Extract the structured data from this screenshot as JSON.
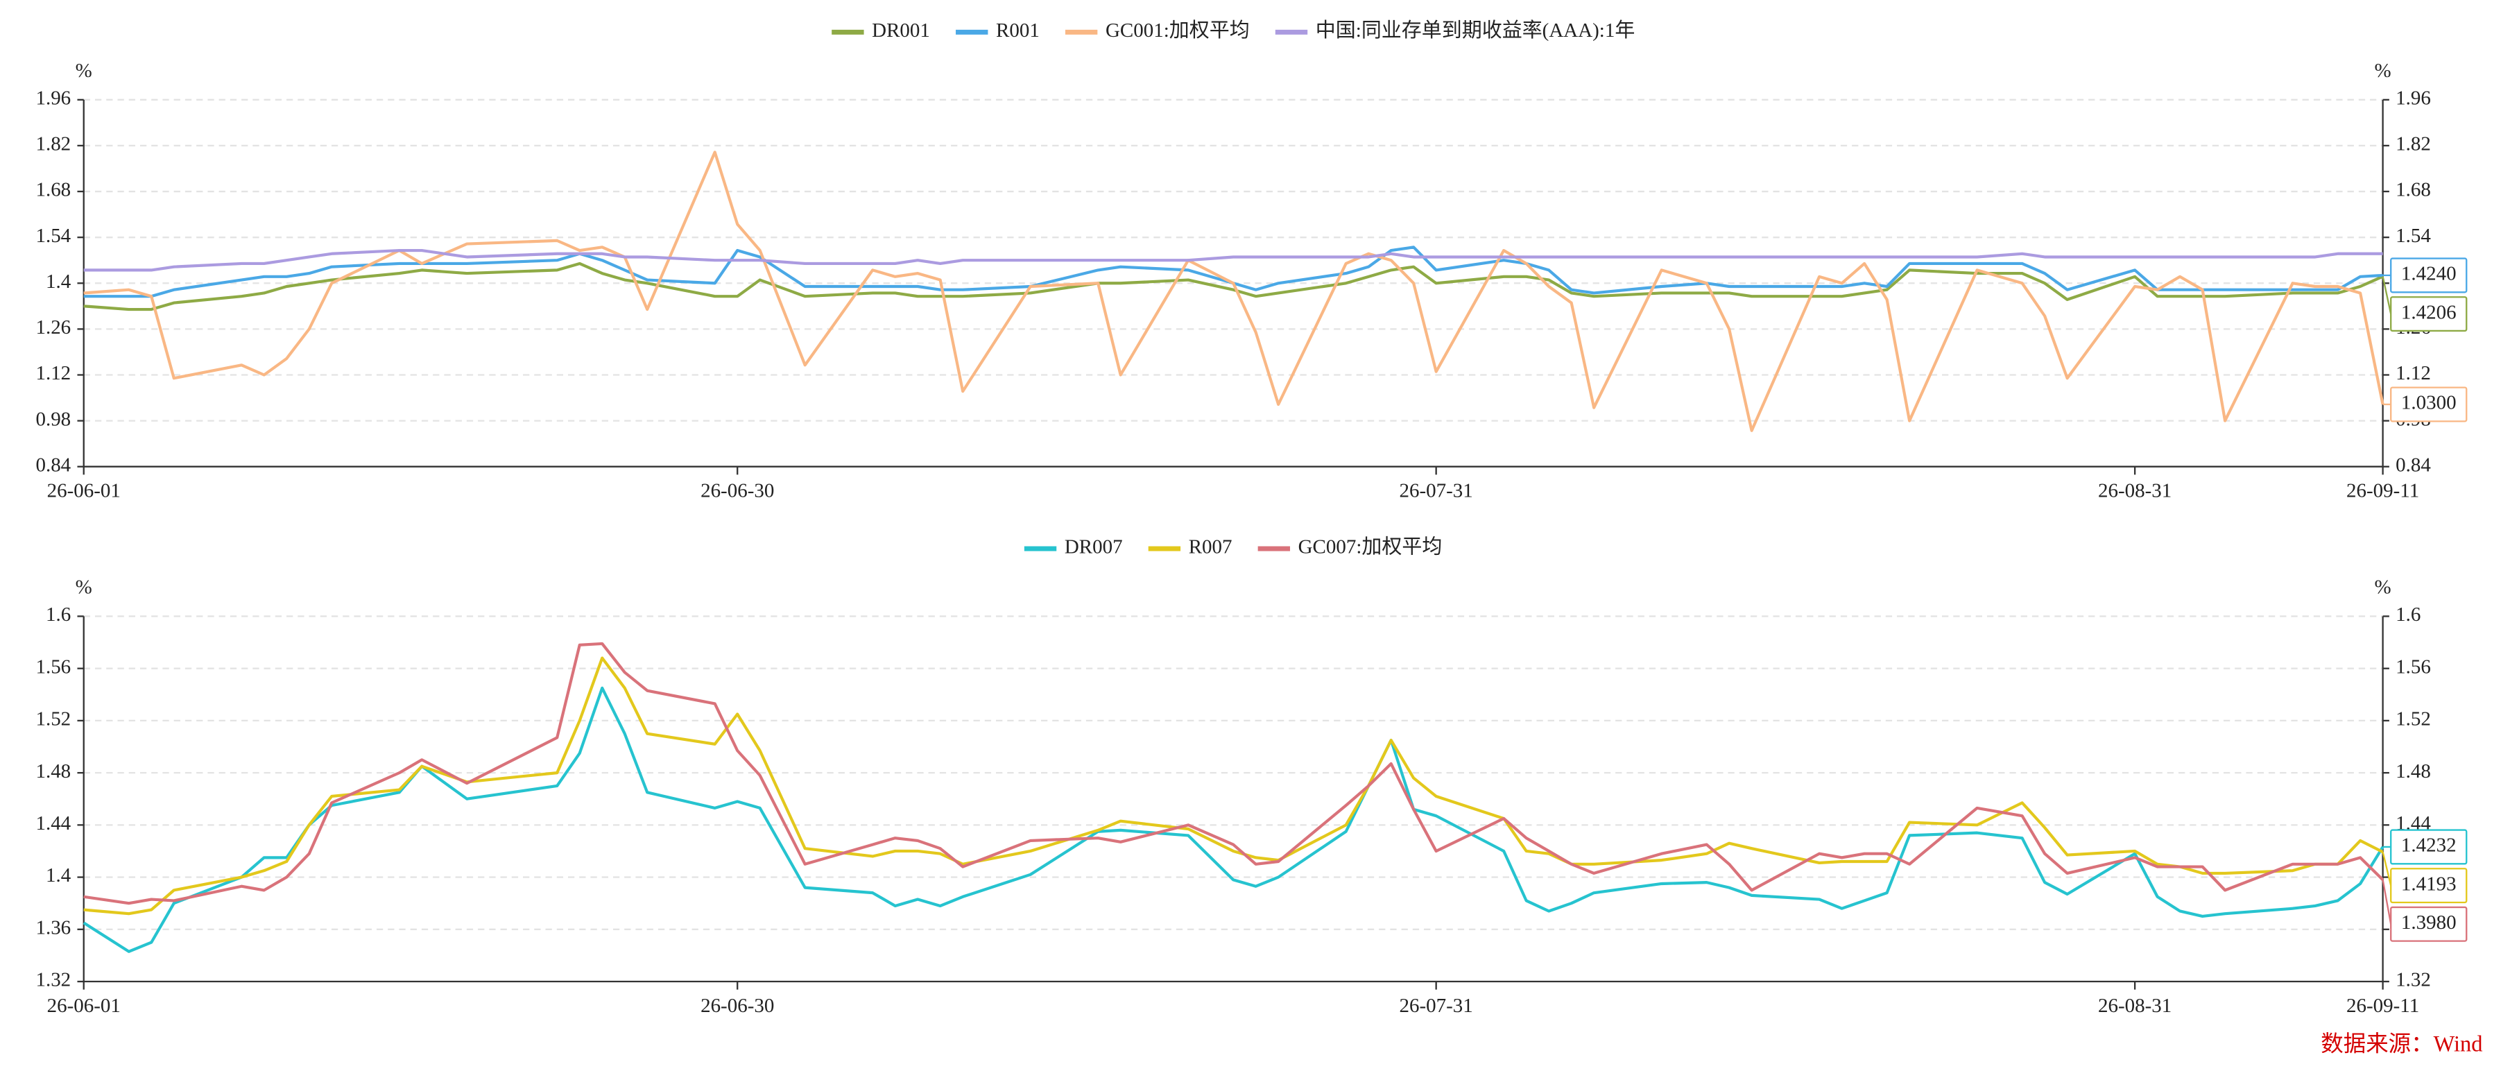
{
  "chart_data": [
    {
      "type": "line",
      "x": [
        "26-06-01",
        "26-06-03",
        "26-06-04",
        "26-06-05",
        "26-06-08",
        "26-06-09",
        "26-06-10",
        "26-06-11",
        "26-06-12",
        "26-06-15",
        "26-06-16",
        "26-06-18",
        "26-06-22",
        "26-06-23",
        "26-06-24",
        "26-06-25",
        "26-06-26",
        "26-06-29",
        "26-06-30",
        "26-07-01",
        "26-07-03",
        "26-07-06",
        "26-07-07",
        "26-07-08",
        "26-07-09",
        "26-07-10",
        "26-07-13",
        "26-07-16",
        "26-07-17",
        "26-07-20",
        "26-07-22",
        "26-07-23",
        "26-07-24",
        "26-07-27",
        "26-07-28",
        "26-07-29",
        "26-07-30",
        "26-07-31",
        "26-08-03",
        "26-08-04",
        "26-08-05",
        "26-08-06",
        "26-08-07",
        "26-08-10",
        "26-08-12",
        "26-08-13",
        "26-08-14",
        "26-08-17",
        "26-08-18",
        "26-08-19",
        "26-08-20",
        "26-08-21",
        "26-08-24",
        "26-08-26",
        "26-08-27",
        "26-08-28",
        "26-08-31",
        "26-09-01",
        "26-09-02",
        "26-09-03",
        "26-09-04",
        "26-09-07",
        "26-09-08",
        "26-09-09",
        "26-09-10",
        "26-09-11"
      ],
      "xlim": [
        "26-06-01",
        "26-09-11"
      ],
      "xticks": [
        "26-06-01",
        "26-06-30",
        "26-07-31",
        "26-08-31",
        "26-09-11"
      ],
      "ylabel": "%",
      "y2label": "%",
      "ylim": [
        0.84,
        1.96
      ],
      "yticks": [
        0.84,
        0.98,
        1.12,
        1.26,
        1.4,
        1.54,
        1.68,
        1.82,
        1.96
      ],
      "y2lim": [
        0.84,
        1.96
      ],
      "y2ticks": [
        0.84,
        0.98,
        1.12,
        1.26,
        1.4,
        1.54,
        1.68,
        1.82,
        1.96
      ],
      "grid": true,
      "legend": "top",
      "series": [
        {
          "name": "DR001",
          "color": "#8eaa45",
          "last_label": "1.4206",
          "values": [
            1.33,
            1.32,
            1.32,
            1.34,
            1.36,
            1.37,
            1.39,
            1.4,
            1.41,
            1.43,
            1.44,
            1.43,
            1.44,
            1.46,
            1.43,
            1.41,
            1.4,
            1.36,
            1.36,
            1.41,
            1.36,
            1.37,
            1.37,
            1.36,
            1.36,
            1.36,
            1.37,
            1.4,
            1.4,
            1.41,
            1.38,
            1.36,
            1.37,
            1.4,
            1.42,
            1.44,
            1.45,
            1.4,
            1.42,
            1.42,
            1.41,
            1.37,
            1.36,
            1.37,
            1.37,
            1.37,
            1.36,
            1.36,
            1.36,
            1.37,
            1.38,
            1.44,
            1.43,
            1.43,
            1.4,
            1.35,
            1.42,
            1.36,
            1.36,
            1.36,
            1.36,
            1.37,
            1.37,
            1.37,
            1.39,
            1.4206
          ]
        },
        {
          "name": "R001",
          "color": "#4aa8e6",
          "last_label": "1.4240",
          "values": [
            1.36,
            1.36,
            1.36,
            1.38,
            1.41,
            1.42,
            1.42,
            1.43,
            1.45,
            1.46,
            1.46,
            1.46,
            1.47,
            1.49,
            1.47,
            1.44,
            1.41,
            1.4,
            1.5,
            1.48,
            1.39,
            1.39,
            1.39,
            1.39,
            1.38,
            1.38,
            1.39,
            1.44,
            1.45,
            1.44,
            1.4,
            1.38,
            1.4,
            1.43,
            1.45,
            1.5,
            1.51,
            1.44,
            1.47,
            1.46,
            1.44,
            1.38,
            1.37,
            1.39,
            1.4,
            1.39,
            1.39,
            1.39,
            1.39,
            1.4,
            1.39,
            1.46,
            1.46,
            1.46,
            1.43,
            1.38,
            1.44,
            1.38,
            1.38,
            1.38,
            1.38,
            1.38,
            1.38,
            1.38,
            1.42,
            1.424
          ]
        },
        {
          "name": "GC001:加权平均",
          "color": "#f9b784",
          "last_label": "1.0300",
          "values": [
            1.37,
            1.38,
            1.36,
            1.11,
            1.15,
            1.12,
            1.17,
            1.26,
            1.4,
            1.5,
            1.46,
            1.52,
            1.53,
            1.5,
            1.51,
            1.48,
            1.32,
            1.8,
            1.58,
            1.5,
            1.15,
            1.44,
            1.42,
            1.43,
            1.41,
            1.07,
            1.39,
            1.4,
            1.12,
            1.47,
            1.4,
            1.25,
            1.03,
            1.46,
            1.49,
            1.47,
            1.4,
            1.13,
            1.5,
            1.46,
            1.39,
            1.34,
            1.02,
            1.44,
            1.4,
            1.26,
            0.95,
            1.42,
            1.4,
            1.46,
            1.35,
            0.98,
            1.44,
            1.4,
            1.3,
            1.11,
            1.39,
            1.38,
            1.42,
            1.38,
            0.98,
            1.4,
            1.39,
            1.39,
            1.37,
            1.03
          ]
        },
        {
          "name": "中国:同业存单到期收益率(AAA):1年",
          "color": "#ab9be0",
          "values": [
            1.44,
            1.44,
            1.44,
            1.45,
            1.46,
            1.46,
            1.47,
            1.48,
            1.49,
            1.5,
            1.5,
            1.48,
            1.49,
            1.49,
            1.49,
            1.48,
            1.48,
            1.47,
            1.47,
            1.47,
            1.46,
            1.46,
            1.46,
            1.47,
            1.46,
            1.47,
            1.47,
            1.47,
            1.47,
            1.47,
            1.48,
            1.48,
            1.48,
            1.48,
            1.48,
            1.49,
            1.48,
            1.48,
            1.48,
            1.48,
            1.48,
            1.48,
            1.48,
            1.48,
            1.48,
            1.48,
            1.48,
            1.48,
            1.48,
            1.48,
            1.48,
            1.48,
            1.48,
            1.49,
            1.48,
            1.48,
            1.48,
            1.48,
            1.48,
            1.48,
            1.48,
            1.48,
            1.48,
            1.49,
            1.49,
            1.49
          ]
        }
      ]
    },
    {
      "type": "line",
      "x": [
        "26-06-01",
        "26-06-03",
        "26-06-04",
        "26-06-05",
        "26-06-08",
        "26-06-09",
        "26-06-10",
        "26-06-11",
        "26-06-12",
        "26-06-15",
        "26-06-16",
        "26-06-18",
        "26-06-22",
        "26-06-23",
        "26-06-24",
        "26-06-25",
        "26-06-26",
        "26-06-29",
        "26-06-30",
        "26-07-01",
        "26-07-03",
        "26-07-06",
        "26-07-07",
        "26-07-08",
        "26-07-09",
        "26-07-10",
        "26-07-13",
        "26-07-16",
        "26-07-17",
        "26-07-20",
        "26-07-22",
        "26-07-23",
        "26-07-24",
        "26-07-27",
        "26-07-28",
        "26-07-29",
        "26-07-30",
        "26-07-31",
        "26-08-03",
        "26-08-04",
        "26-08-05",
        "26-08-06",
        "26-08-07",
        "26-08-10",
        "26-08-12",
        "26-08-13",
        "26-08-14",
        "26-08-17",
        "26-08-18",
        "26-08-19",
        "26-08-20",
        "26-08-21",
        "26-08-24",
        "26-08-26",
        "26-08-27",
        "26-08-28",
        "26-08-31",
        "26-09-01",
        "26-09-02",
        "26-09-03",
        "26-09-04",
        "26-09-07",
        "26-09-08",
        "26-09-09",
        "26-09-10",
        "26-09-11"
      ],
      "xlim": [
        "26-06-01",
        "26-09-11"
      ],
      "xticks": [
        "26-06-01",
        "26-06-30",
        "26-07-31",
        "26-08-31",
        "26-09-11"
      ],
      "ylabel": "%",
      "y2label": "%",
      "ylim": [
        1.32,
        1.6
      ],
      "yticks": [
        1.32,
        1.36,
        1.4,
        1.44,
        1.48,
        1.52,
        1.56,
        1.6
      ],
      "y2lim": [
        1.32,
        1.6
      ],
      "y2ticks": [
        1.32,
        1.36,
        1.4,
        1.44,
        1.48,
        1.52,
        1.56,
        1.6
      ],
      "grid": true,
      "legend": "top",
      "series": [
        {
          "name": "DR007",
          "color": "#26c3cf",
          "last_label": "1.4232",
          "values": [
            1.365,
            1.343,
            1.35,
            1.38,
            1.4,
            1.415,
            1.415,
            1.44,
            1.455,
            1.465,
            1.485,
            1.46,
            1.47,
            1.495,
            1.545,
            1.51,
            1.465,
            1.453,
            1.458,
            1.453,
            1.392,
            1.388,
            1.378,
            1.383,
            1.378,
            1.385,
            1.402,
            1.435,
            1.436,
            1.432,
            1.398,
            1.393,
            1.4,
            1.435,
            1.47,
            1.505,
            1.452,
            1.447,
            1.42,
            1.382,
            1.374,
            1.38,
            1.388,
            1.395,
            1.396,
            1.392,
            1.386,
            1.383,
            1.376,
            1.382,
            1.388,
            1.432,
            1.434,
            1.43,
            1.396,
            1.387,
            1.418,
            1.385,
            1.374,
            1.37,
            1.372,
            1.376,
            1.378,
            1.382,
            1.395,
            1.4232
          ]
        },
        {
          "name": "R007",
          "color": "#e3c81c",
          "last_label": "1.4193",
          "values": [
            1.375,
            1.372,
            1.375,
            1.39,
            1.4,
            1.405,
            1.412,
            1.44,
            1.462,
            1.467,
            1.485,
            1.473,
            1.48,
            1.52,
            1.568,
            1.545,
            1.51,
            1.502,
            1.525,
            1.497,
            1.422,
            1.416,
            1.42,
            1.42,
            1.418,
            1.41,
            1.42,
            1.436,
            1.443,
            1.437,
            1.42,
            1.415,
            1.413,
            1.44,
            1.47,
            1.505,
            1.476,
            1.462,
            1.445,
            1.42,
            1.418,
            1.41,
            1.41,
            1.413,
            1.418,
            1.426,
            1.422,
            1.411,
            1.412,
            1.412,
            1.412,
            1.442,
            1.44,
            1.457,
            1.438,
            1.417,
            1.42,
            1.41,
            1.408,
            1.403,
            1.403,
            1.405,
            1.41,
            1.41,
            1.428,
            1.4193
          ]
        },
        {
          "name": "GC007:加权平均",
          "color": "#d9727a",
          "last_label": "1.3980",
          "values": [
            1.385,
            1.38,
            1.383,
            1.382,
            1.393,
            1.39,
            1.4,
            1.418,
            1.457,
            1.48,
            1.49,
            1.472,
            1.507,
            1.578,
            1.579,
            1.557,
            1.543,
            1.533,
            1.497,
            1.478,
            1.41,
            1.425,
            1.43,
            1.428,
            1.422,
            1.408,
            1.428,
            1.43,
            1.427,
            1.44,
            1.425,
            1.41,
            1.412,
            1.455,
            1.47,
            1.487,
            1.452,
            1.42,
            1.445,
            1.43,
            1.42,
            1.41,
            1.403,
            1.418,
            1.425,
            1.41,
            1.39,
            1.418,
            1.415,
            1.418,
            1.418,
            1.41,
            1.453,
            1.447,
            1.418,
            1.403,
            1.415,
            1.408,
            1.408,
            1.408,
            1.39,
            1.41,
            1.41,
            1.41,
            1.415,
            1.398
          ]
        }
      ]
    }
  ],
  "source": "数据来源：Wind"
}
